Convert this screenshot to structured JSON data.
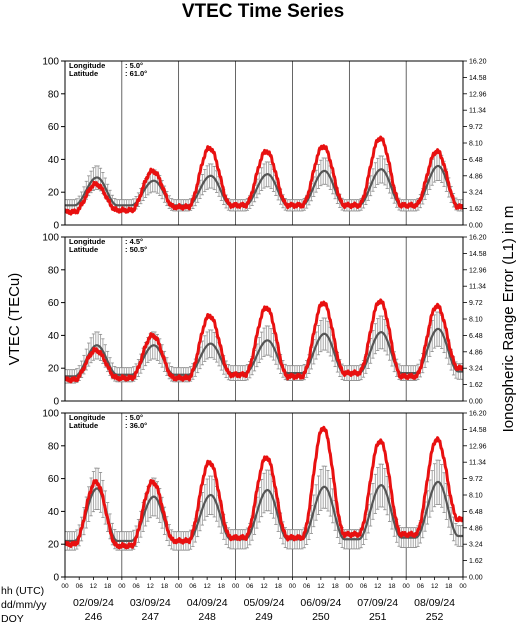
{
  "chart_data": {
    "type": "line",
    "title": "VTEC Time Series",
    "ylabel_left": "VTEC (TECu)",
    "ylabel_right": "Ionospheric Range Error (L1) in m",
    "ylim": [
      0,
      100
    ],
    "yticks": [
      0,
      20,
      40,
      60,
      80,
      100
    ],
    "right_ticks": [
      "0.00",
      "1.62",
      "3.24",
      "4.86",
      "6.48",
      "8.10",
      "9.72",
      "11.34",
      "12.96",
      "14.58",
      "16.20"
    ],
    "hour_ticks": [
      "00",
      "06",
      "12",
      "18"
    ],
    "row_labels": [
      "hh (UTC)",
      "dd/mm/yy",
      "DOY"
    ],
    "days": [
      {
        "date": "02/09/24",
        "doy": "246"
      },
      {
        "date": "03/09/24",
        "doy": "247"
      },
      {
        "date": "04/09/24",
        "doy": "248"
      },
      {
        "date": "05/09/24",
        "doy": "249"
      },
      {
        "date": "06/09/24",
        "doy": "250"
      },
      {
        "date": "07/09/24",
        "doy": "251"
      },
      {
        "date": "08/09/24",
        "doy": "252"
      }
    ],
    "grid_vertical": true,
    "series_colors": {
      "observed": "#e81010",
      "median": "#555555",
      "spread": "#a8a8a8"
    },
    "panels": [
      {
        "lon_label": "Longitude",
        "lon_value": ":   5.0°",
        "lat_label": "Latitude",
        "lat_value": ": 61.0°",
        "observed_min": [
          8,
          9,
          11,
          12,
          12,
          12,
          12,
          11
        ],
        "observed_max": [
          25,
          33,
          47,
          45,
          48,
          53,
          45
        ],
        "median_min": [
          12,
          12,
          12,
          12,
          12,
          12,
          12,
          12
        ],
        "median_max": [
          29,
          27,
          30,
          31,
          33,
          34,
          36
        ]
      },
      {
        "lon_label": "Longitude",
        "lon_value": ":   4.5°",
        "lat_label": "Latitude",
        "lat_value": ": 50.5°",
        "observed_min": [
          13,
          14,
          14,
          16,
          15,
          17,
          15,
          20
        ],
        "observed_max": [
          31,
          40,
          52,
          57,
          60,
          61,
          58
        ],
        "median_min": [
          15,
          16,
          16,
          17,
          17,
          17,
          17,
          18
        ],
        "median_max": [
          34,
          34,
          35,
          37,
          41,
          42,
          44
        ]
      },
      {
        "lon_label": "Longitude",
        "lon_value": ":   5.0°",
        "lat_label": "Latitude",
        "lat_value": ": 36.0°",
        "observed_min": [
          20,
          19,
          22,
          24,
          24,
          26,
          26,
          35
        ],
        "observed_max": [
          58,
          58,
          70,
          73,
          91,
          83,
          84
        ],
        "median_min": [
          22,
          22,
          22,
          23,
          23,
          23,
          24,
          25
        ],
        "median_max": [
          54,
          49,
          50,
          53,
          55,
          56,
          58
        ]
      }
    ]
  }
}
